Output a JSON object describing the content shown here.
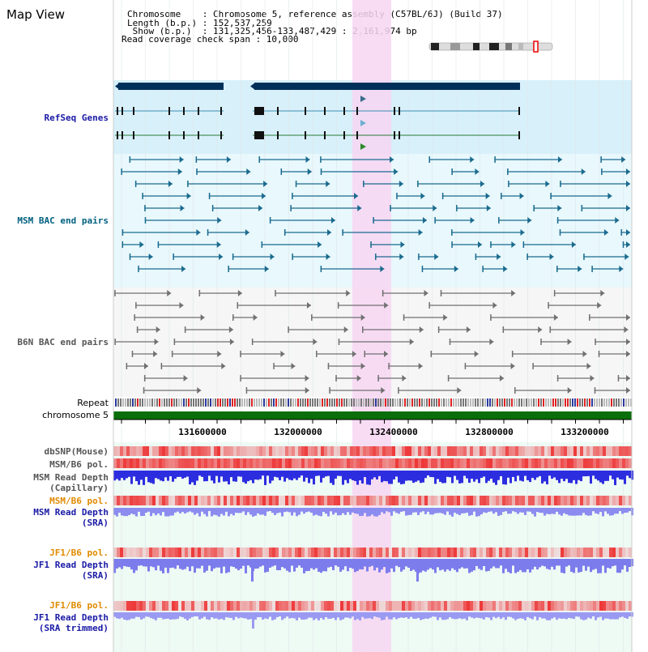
{
  "title": "Map View",
  "info": [
    "Chromosome    : Chromosome 5, reference assembly (C57BL/6J) (Build 37)",
    "Length (b.p.) : 152,537,259",
    " Show (b.p.)  : 131,325,456-133,487,429 : 2,161,974 bp",
    "Read coverage check span : 10,000"
  ],
  "tracks": {
    "refseq": "RefSeq Genes",
    "msm_bac": "MSM BAC end pairs",
    "b6n_bac": "B6N BAC end pairs",
    "repeat": "Repeat",
    "chromosome": "chromosome 5",
    "dbsnp": "dbSNP(Mouse)",
    "msm_b6_pol_1": "MSM/B6 pol.",
    "msm_depth_cap_1": "MSM Read Depth",
    "msm_depth_cap_2": "(Capillary)",
    "msm_b6_pol_2": "MSM/B6 pol.",
    "msm_depth_sra_1": "MSM Read Depth",
    "msm_depth_sra_2": "(SRA)",
    "jf1_b6_pol_1": "JF1/B6 pol.",
    "jf1_depth_sra_1": "JF1 Read Depth",
    "jf1_depth_sra_2": "(SRA)",
    "jf1_b6_pol_2": "JF1/B6 pol.",
    "jf1_depth_trim_1": "JF1 Read Depth",
    "jf1_depth_trim_2": "(SRA trimmed)"
  },
  "axis": {
    "ticks": [
      "131600000",
      "132000000",
      "132400000",
      "132800000",
      "133200000"
    ]
  },
  "colors": {
    "refseq_bg": "#d8f0fa",
    "msm_bg": "#e8f8fc",
    "highlight": "#f7d6f2",
    "chromosome": "#0a6e0a",
    "gene": "#00305a"
  }
}
